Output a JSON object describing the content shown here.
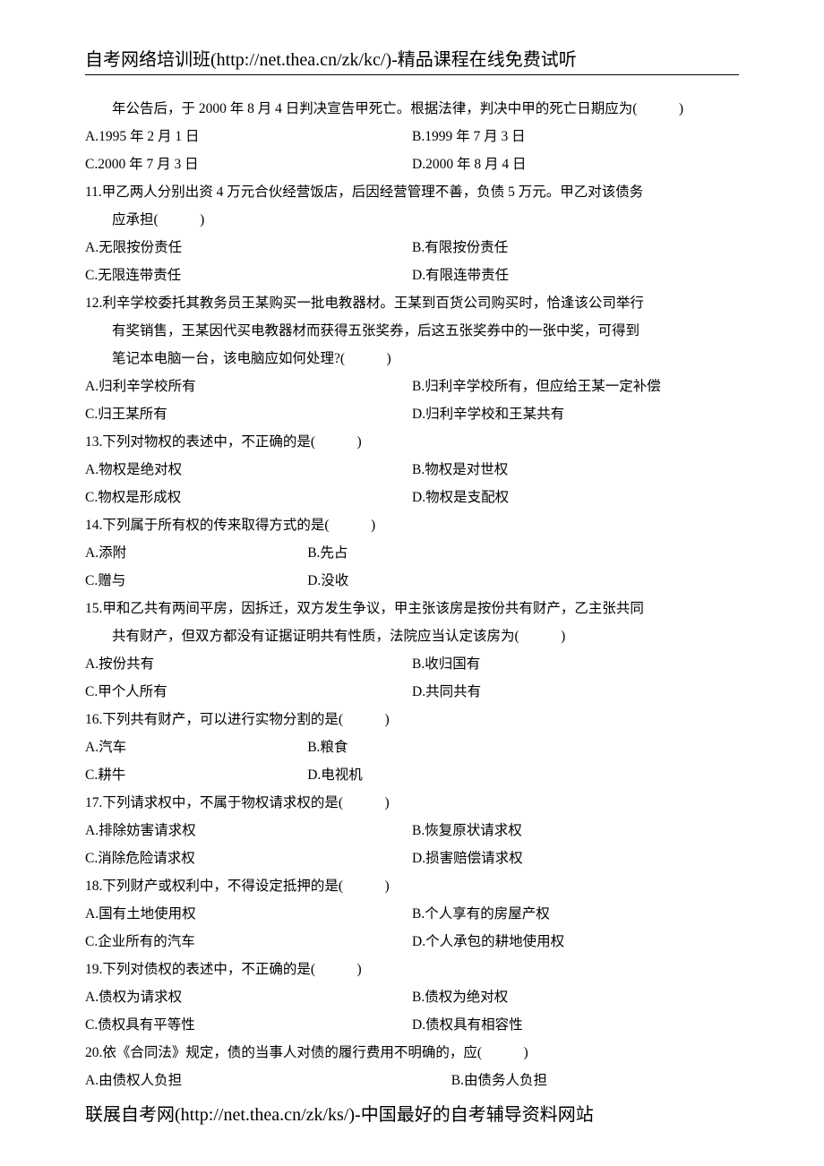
{
  "header": "自考网络培训班(http://net.thea.cn/zk/kc/)-精品课程在线免费试听",
  "footer": "联展自考网(http://net.thea.cn/zk/ks/)-中国最好的自考辅导资料网站",
  "q10_cont": "年公告后，于 2000 年 8 月 4 日判决宣告甲死亡。根据法律，判决中甲的死亡日期应为(　　　)",
  "q10_a": "A.1995 年 2 月 1 日",
  "q10_b": "B.1999 年 7 月 3 日",
  "q10_c": "C.2000 年 7 月 3 日",
  "q10_d": "D.2000 年 8 月 4 日",
  "q11_stem1": "11.甲乙两人分别出资 4 万元合伙经营饭店，后因经营管理不善，负债 5 万元。甲乙对该债务",
  "q11_stem2": "应承担(　　　)",
  "q11_a": "A.无限按份责任",
  "q11_b": "B.有限按份责任",
  "q11_c": "C.无限连带责任",
  "q11_d": "D.有限连带责任",
  "q12_stem1": "12.利辛学校委托其教务员王某购买一批电教器材。王某到百货公司购买时，恰逢该公司举行",
  "q12_stem2": "有奖销售，王某因代买电教器材而获得五张奖券，后这五张奖券中的一张中奖，可得到",
  "q12_stem3": "笔记本电脑一台，该电脑应如何处理?(　　　)",
  "q12_a": "A.归利辛学校所有",
  "q12_b": "B.归利辛学校所有，但应给王某一定补偿",
  "q12_c": "C.归王某所有",
  "q12_d": "D.归利辛学校和王某共有",
  "q13_stem": "13.下列对物权的表述中，不正确的是(　　　)",
  "q13_a": "A.物权是绝对权",
  "q13_b": "B.物权是对世权",
  "q13_c": "C.物权是形成权",
  "q13_d": "D.物权是支配权",
  "q14_stem": "14.下列属于所有权的传来取得方式的是(　　　)",
  "q14_a": "A.添附",
  "q14_b": "B.先占",
  "q14_c": "C.赠与",
  "q14_d": "D.没收",
  "q15_stem1": "15.甲和乙共有两间平房，因拆迁，双方发生争议，甲主张该房是按份共有财产，乙主张共同",
  "q15_stem2": "共有财产，但双方都没有证据证明共有性质，法院应当认定该房为(　　　)",
  "q15_a": "A.按份共有",
  "q15_b": "B.收归国有",
  "q15_c": "C.甲个人所有",
  "q15_d": "D.共同共有",
  "q16_stem": "16.下列共有财产，可以进行实物分割的是(　　　)",
  "q16_a": "A.汽车",
  "q16_b": "B.粮食",
  "q16_c": "C.耕牛",
  "q16_d": "D.电视机",
  "q17_stem": "17.下列请求权中，不属于物权请求权的是(　　　)",
  "q17_a": "A.排除妨害请求权",
  "q17_b": "B.恢复原状请求权",
  "q17_c": "C.消除危险请求权",
  "q17_d": "D.损害赔偿请求权",
  "q18_stem": "18.下列财产或权利中，不得设定抵押的是(　　　)",
  "q18_a": "A.国有土地使用权",
  "q18_b": "B.个人享有的房屋产权",
  "q18_c": "C.企业所有的汽车",
  "q18_d": "D.个人承包的耕地使用权",
  "q19_stem": "19.下列对债权的表述中，不正确的是(　　　)",
  "q19_a": "A.债权为请求权",
  "q19_b": "B.债权为绝对权",
  "q19_c": "C.债权具有平等性",
  "q19_d": "D.债权具有相容性",
  "q20_stem": "20.依《合同法》规定，债的当事人对债的履行费用不明确的，应(　　　)",
  "q20_a": "A.由债权人负担",
  "q20_b": "B.由债务人负担"
}
